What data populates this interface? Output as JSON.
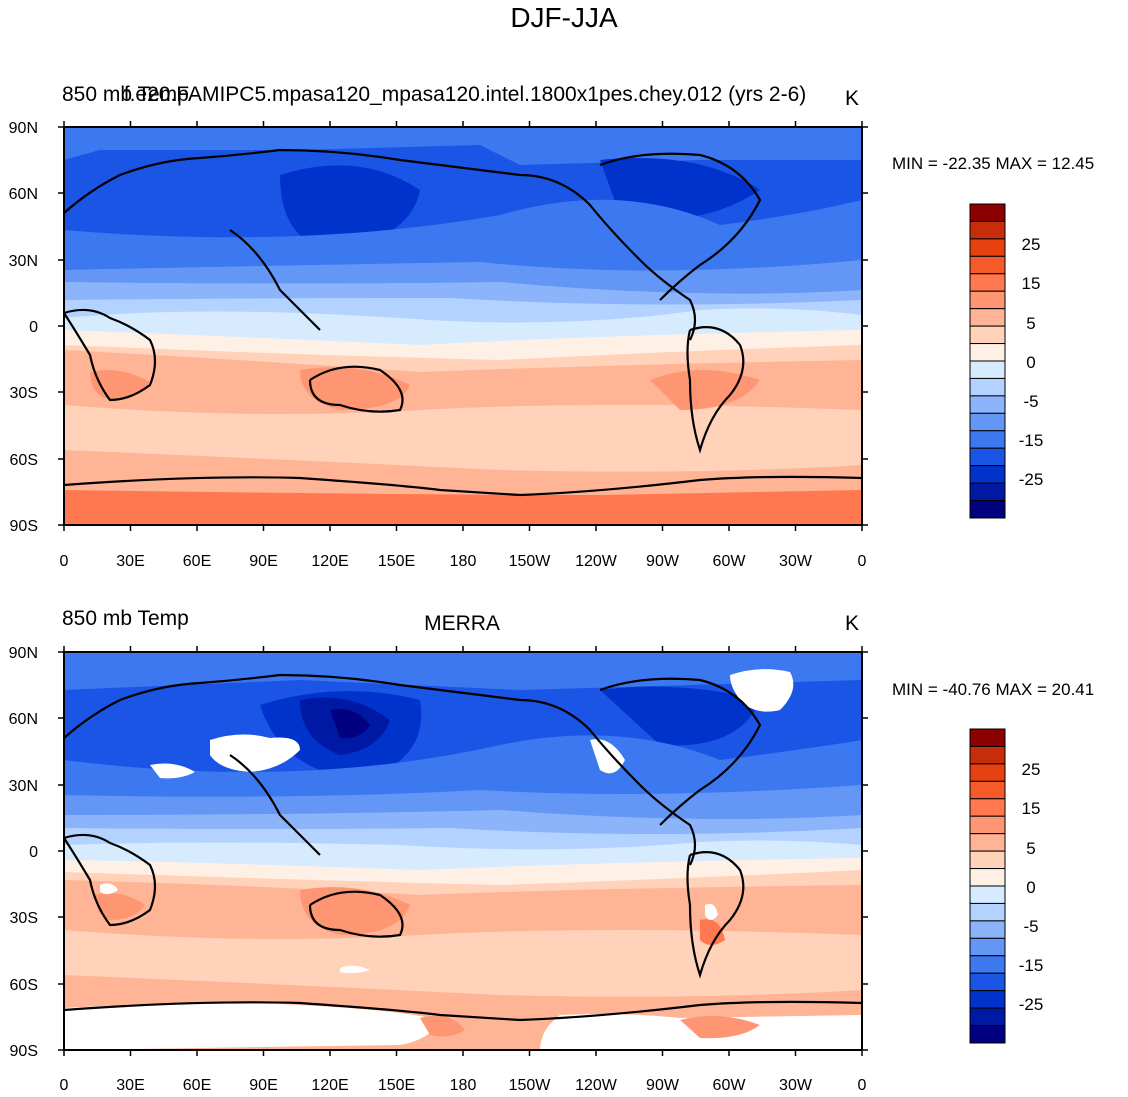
{
  "figure_title": "DJF-JJA",
  "colorbar": {
    "colors": [
      "#000080",
      "#0019a5",
      "#0033cc",
      "#1a55e6",
      "#3c78f0",
      "#6496f5",
      "#8cb4fa",
      "#b4d2ff",
      "#d7ebff",
      "#fff0e6",
      "#ffd2b9",
      "#ffb496",
      "#ff9673",
      "#ff7850",
      "#f55a28",
      "#e6410f",
      "#c82d0a",
      "#8c0000"
    ],
    "tick_labels": [
      "25",
      "15",
      "5",
      "0",
      "-5",
      "-15",
      "-25"
    ]
  },
  "colors": {
    "coast": "#000000",
    "missing": "#ffffff"
  },
  "panels": [
    {
      "id": "top",
      "left_label": "850 mb Temp",
      "center_label": "f.e20.FAMIPC5.mpasa120_mpasa120.intel.1800x1pes.chey.012 (yrs 2-6)",
      "right_label": "K",
      "min_max": "MIN = -22.35 MAX =  12.45",
      "stats": {
        "min": -22.35,
        "max": 12.45
      }
    },
    {
      "id": "bottom",
      "left_label": "850 mb Temp",
      "center_label": "MERRA",
      "right_label": "K",
      "min_max": "MIN = -40.76 MAX =  20.41",
      "stats": {
        "min": -40.76,
        "max": 20.41
      }
    }
  ],
  "axes": {
    "lat_labels": [
      "90N",
      "60N",
      "30N",
      "0",
      "30S",
      "60S",
      "90S"
    ],
    "lon_labels": [
      "0",
      "30E",
      "60E",
      "90E",
      "120E",
      "150E",
      "180",
      "150W",
      "120W",
      "90W",
      "60W",
      "30W",
      "0"
    ]
  }
}
